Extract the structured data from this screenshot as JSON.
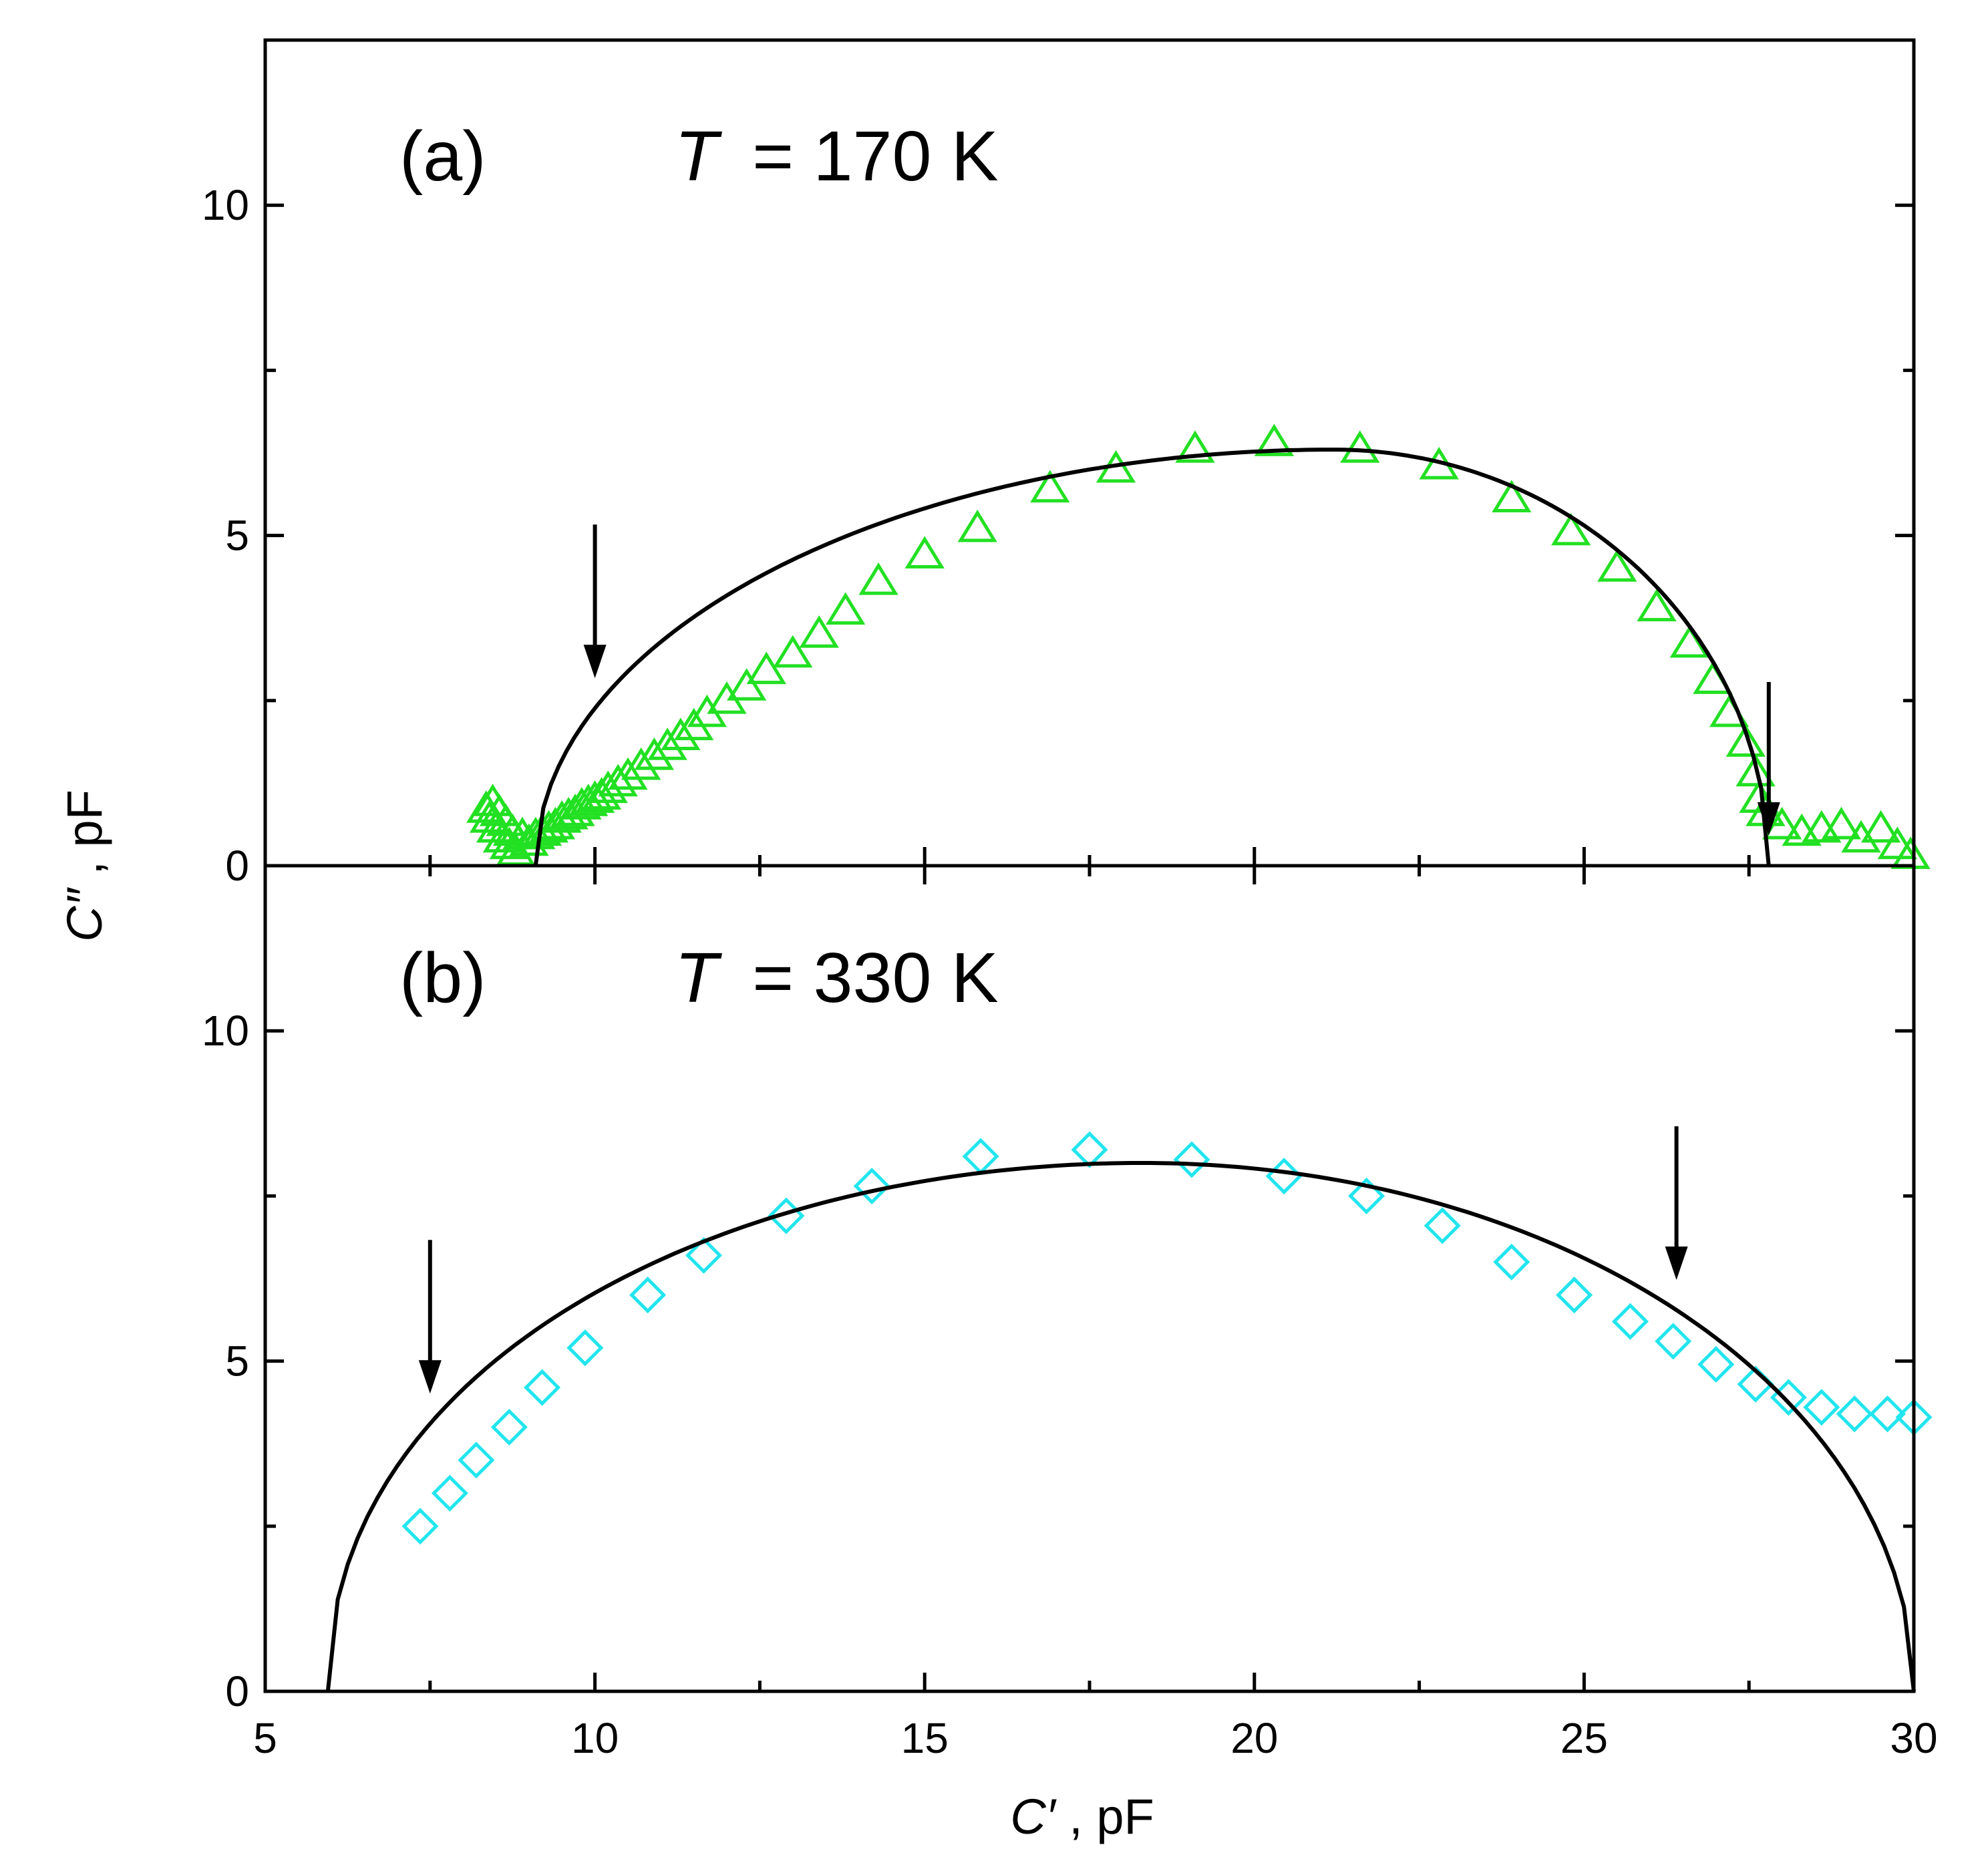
{
  "chart_data": [
    {
      "panel": "a",
      "type": "scatter",
      "panel_label": "(a)",
      "temperature_symbol": "T",
      "temperature_value": "= 170 K",
      "x_range": [
        5,
        30
      ],
      "y_range": [
        0,
        12.5
      ],
      "x_ticks": [
        5,
        10,
        15,
        20,
        25,
        30
      ],
      "y_ticks": [
        "0",
        "5",
        "10"
      ],
      "y_tick_values": [
        0,
        5,
        10
      ],
      "marker": "triangle",
      "marker_color": "#22e022",
      "points": [
        [
          8.35,
          0.85
        ],
        [
          8.4,
          0.7
        ],
        [
          8.45,
          0.95
        ],
        [
          8.5,
          0.55
        ],
        [
          8.55,
          0.8
        ],
        [
          8.6,
          0.4
        ],
        [
          8.65,
          0.65
        ],
        [
          8.7,
          0.3
        ],
        [
          8.75,
          0.5
        ],
        [
          8.8,
          0.2
        ],
        [
          8.9,
          0.45
        ],
        [
          9.0,
          0.35
        ],
        [
          9.1,
          0.45
        ],
        [
          9.2,
          0.5
        ],
        [
          9.3,
          0.55
        ],
        [
          9.4,
          0.6
        ],
        [
          9.5,
          0.7
        ],
        [
          9.6,
          0.75
        ],
        [
          9.7,
          0.8
        ],
        [
          9.8,
          0.9
        ],
        [
          9.9,
          0.95
        ],
        [
          10.0,
          1.0
        ],
        [
          10.1,
          1.05
        ],
        [
          10.2,
          1.15
        ],
        [
          10.35,
          1.25
        ],
        [
          10.5,
          1.35
        ],
        [
          10.7,
          1.5
        ],
        [
          10.9,
          1.65
        ],
        [
          11.1,
          1.8
        ],
        [
          11.3,
          1.95
        ],
        [
          11.5,
          2.1
        ],
        [
          11.7,
          2.3
        ],
        [
          12.0,
          2.5
        ],
        [
          12.3,
          2.7
        ],
        [
          12.6,
          2.95
        ],
        [
          13.0,
          3.2
        ],
        [
          13.4,
          3.5
        ],
        [
          13.8,
          3.85
        ],
        [
          14.3,
          4.3
        ],
        [
          15.0,
          4.7
        ],
        [
          15.8,
          5.1
        ],
        [
          16.9,
          5.7
        ],
        [
          17.9,
          6.0
        ],
        [
          19.1,
          6.3
        ],
        [
          20.3,
          6.4
        ],
        [
          21.6,
          6.3
        ],
        [
          22.8,
          6.05
        ],
        [
          23.9,
          5.55
        ],
        [
          24.8,
          5.05
        ],
        [
          25.5,
          4.5
        ],
        [
          26.1,
          3.9
        ],
        [
          26.6,
          3.35
        ],
        [
          26.95,
          2.8
        ],
        [
          27.2,
          2.3
        ],
        [
          27.45,
          1.85
        ],
        [
          27.6,
          1.4
        ],
        [
          27.65,
          1.0
        ],
        [
          27.75,
          0.8
        ],
        [
          28.0,
          0.6
        ],
        [
          28.3,
          0.5
        ],
        [
          28.6,
          0.55
        ],
        [
          28.9,
          0.6
        ],
        [
          29.2,
          0.4
        ],
        [
          29.5,
          0.55
        ],
        [
          29.75,
          0.3
        ],
        [
          29.95,
          0.15
        ]
      ],
      "fit": {
        "type": "depressed semicircle",
        "x_start": 9.1,
        "x_end": 27.8,
        "x_peak": 21.2,
        "y_peak": 6.3,
        "shape_exponent": 1.0
      },
      "arrows_at_x": [
        10.0,
        27.8
      ]
    },
    {
      "panel": "b",
      "type": "scatter",
      "panel_label": "(b)",
      "temperature_symbol": "T",
      "temperature_value": "= 330 K",
      "x_range": [
        5,
        30
      ],
      "y_range": [
        0,
        12.5
      ],
      "x_ticks": [
        5,
        10,
        15,
        20,
        25,
        30
      ],
      "x_tick_labels": [
        "5",
        "10",
        "15",
        "20",
        "25",
        "30"
      ],
      "y_ticks": [
        "0",
        "5",
        "10"
      ],
      "y_tick_values": [
        0,
        5,
        10
      ],
      "marker": "diamond",
      "marker_color": "#22e5ee",
      "points": [
        [
          7.35,
          2.5
        ],
        [
          7.8,
          3.0
        ],
        [
          8.2,
          3.5
        ],
        [
          8.7,
          4.0
        ],
        [
          9.2,
          4.6
        ],
        [
          9.85,
          5.2
        ],
        [
          10.8,
          6.0
        ],
        [
          11.65,
          6.6
        ],
        [
          12.9,
          7.2
        ],
        [
          14.2,
          7.65
        ],
        [
          15.85,
          8.1
        ],
        [
          17.5,
          8.2
        ],
        [
          19.05,
          8.05
        ],
        [
          20.45,
          7.8
        ],
        [
          21.7,
          7.5
        ],
        [
          22.85,
          7.05
        ],
        [
          23.9,
          6.5
        ],
        [
          24.85,
          6.0
        ],
        [
          25.7,
          5.6
        ],
        [
          26.35,
          5.3
        ],
        [
          27.0,
          4.95
        ],
        [
          27.6,
          4.65
        ],
        [
          28.1,
          4.45
        ],
        [
          28.6,
          4.3
        ],
        [
          29.1,
          4.2
        ],
        [
          29.6,
          4.2
        ],
        [
          30.0,
          4.15
        ]
      ],
      "fit": {
        "type": "depressed semicircle",
        "x_start": 5.95,
        "x_end": 30.0,
        "x_peak": 18.3,
        "y_peak": 8.0,
        "shape_exponent": 0.8
      },
      "arrows_at_x": [
        7.5,
        26.4
      ]
    }
  ],
  "xlabel_symbol": "C′",
  "xlabel_unit": ", pF",
  "ylabel_symbol": "C″",
  "ylabel_unit": ", pF"
}
